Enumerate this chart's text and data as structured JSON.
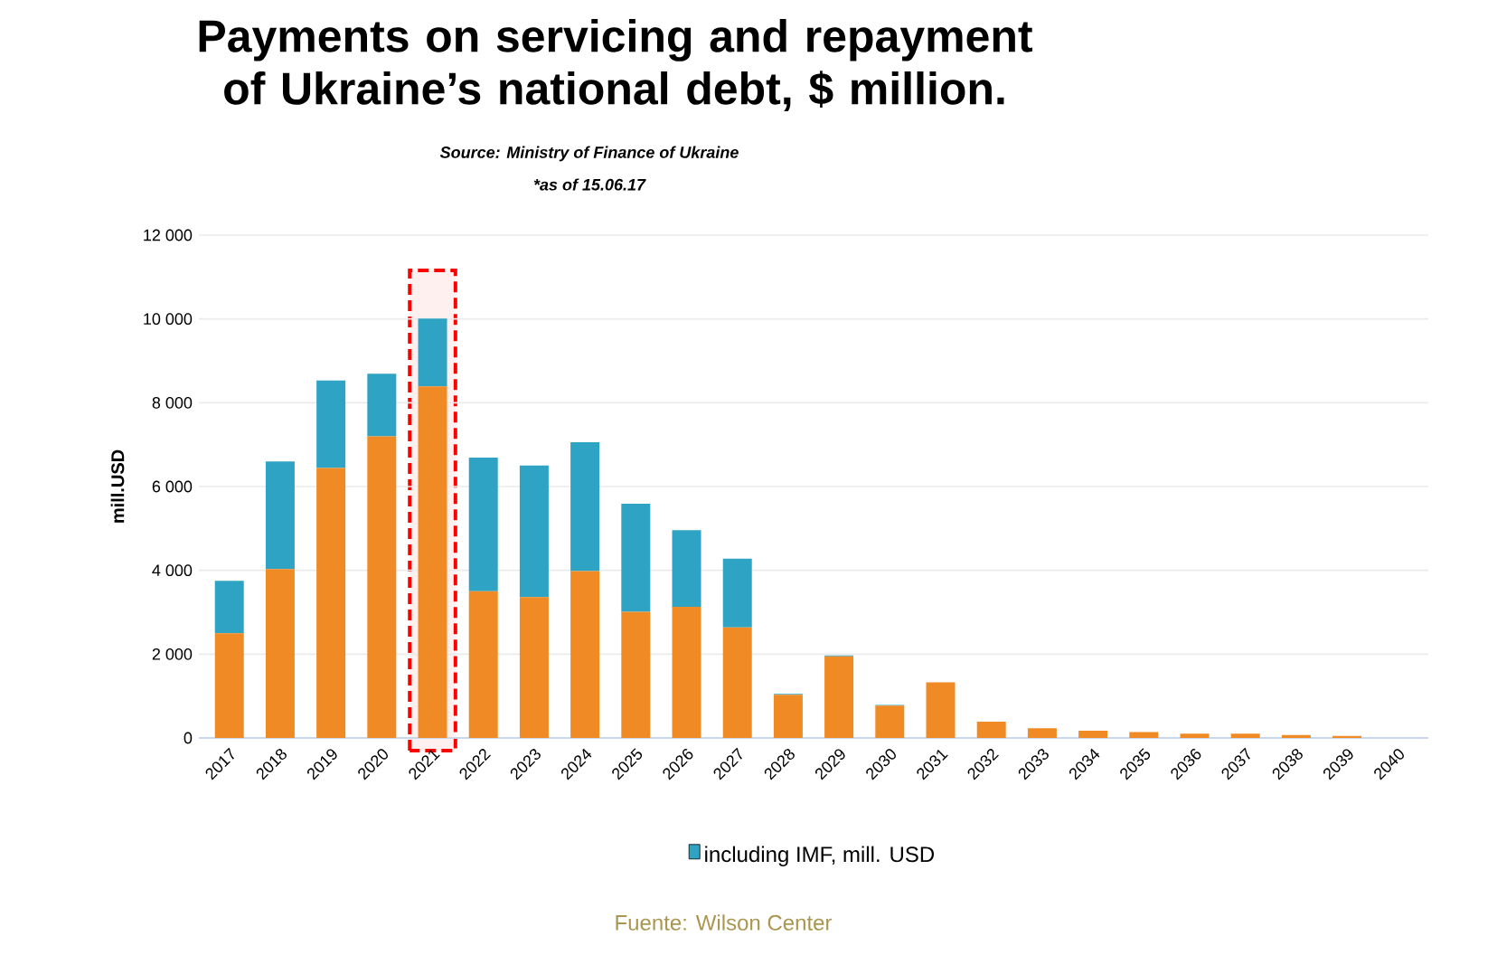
{
  "chart_data": {
    "type": "bar",
    "title": "Payments on servicing and repayment of Ukraine’s national debt, $ million.",
    "subtitle": "Source: Ministry of Finance of Ukraine",
    "annotations": [
      "*as of 15.06.17",
      "Fuente: Wilson Center"
    ],
    "ylabel": "mill.USD",
    "categories": [
      "2017",
      "2018",
      "2019",
      "2020",
      "2021",
      "2022",
      "2023",
      "2024",
      "2025",
      "2026",
      "2027",
      "2028",
      "2029",
      "2030",
      "2031",
      "2032",
      "2033",
      "2034",
      "2035",
      "2036",
      "2037",
      "2038",
      "2039",
      "2040"
    ],
    "stacked": true,
    "series": [
      {
        "color": "#f08a24",
        "values": [
          2500,
          4030,
          6440,
          7200,
          8390,
          3500,
          3360,
          3980,
          3010,
          3130,
          2640,
          1030,
          1950,
          770,
          1330,
          390,
          230,
          170,
          140,
          100,
          100,
          70,
          50,
          0
        ]
      },
      {
        "name": "including IMF, mill. USD",
        "color": "#2ea3c4",
        "values": [
          1250,
          2570,
          2090,
          1490,
          1620,
          3190,
          3140,
          3080,
          2580,
          1830,
          1640,
          20,
          20,
          20,
          0,
          0,
          0,
          0,
          0,
          0,
          0,
          0,
          0,
          0
        ]
      }
    ],
    "ylim": [
      0,
      12000
    ],
    "yticks": [
      0,
      {
        "value": 2000,
        "label": "2 000"
      },
      {
        "value": 4000,
        "label": "4 000"
      },
      {
        "value": 6000,
        "label": "6 000"
      },
      {
        "value": 8000,
        "label": "8 000"
      },
      {
        "value": 10000,
        "label": "10 000"
      },
      {
        "value": 12000,
        "label": "12 000"
      }
    ],
    "grid": "y",
    "legend": "bottom",
    "bands": [
      {
        "axis": "x",
        "from": "2021",
        "to": "2021",
        "color": "#ff0000"
      }
    ]
  }
}
